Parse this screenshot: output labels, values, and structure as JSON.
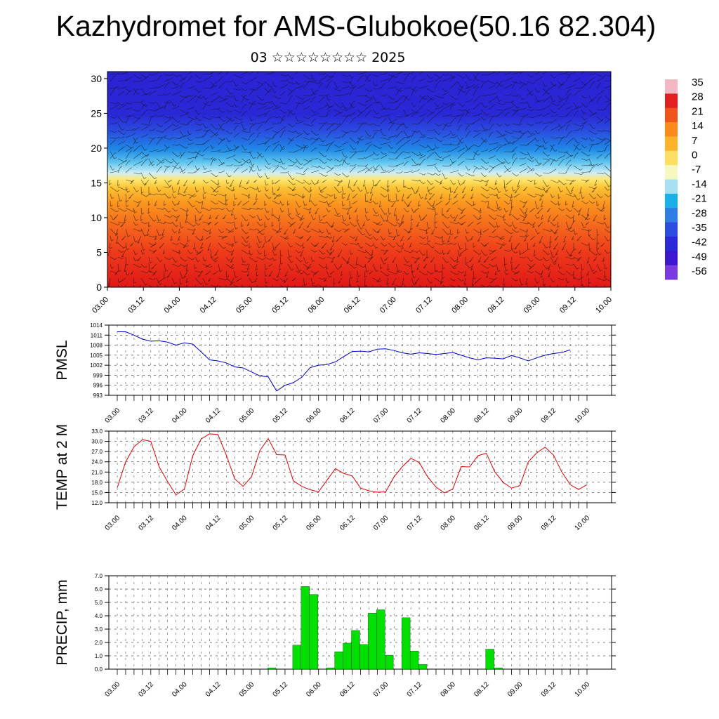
{
  "header": {
    "title": "Kazhydromet for AMS-Glubokoe(50.16 82.304)",
    "subtitle": "03 ☆☆☆☆☆☆☆☆ 2025"
  },
  "colorbar": {
    "labels": [
      "35",
      "28",
      "21",
      "14",
      "7",
      "0",
      "-7",
      "-14",
      "-21",
      "-28",
      "-35",
      "-42",
      "-49",
      "-56"
    ],
    "colors": [
      "#f4b8c4",
      "#e22020",
      "#f0541a",
      "#f98a1c",
      "#fbb42a",
      "#fde062",
      "#f6f8c0",
      "#a8e0f2",
      "#1ab0e8",
      "#2f7ee3",
      "#2d4de0",
      "#2a2ad8",
      "#3d16d2",
      "#7a3ae0"
    ]
  },
  "time_ticks": [
    "03.00",
    "03.12",
    "04.00",
    "04.12",
    "05.00",
    "05.12",
    "06.00",
    "06.12",
    "07.00",
    "07.12",
    "08.00",
    "08.12",
    "09.00",
    "09.12",
    "10.00"
  ],
  "chart_data": [
    {
      "type": "heatmap",
      "description": "Temperature vertical cross-section with wind barbs",
      "x": [
        "03.00",
        "03.12",
        "04.00",
        "04.12",
        "05.00",
        "05.12",
        "06.00",
        "06.12",
        "07.00",
        "07.12",
        "08.00",
        "08.12",
        "09.00",
        "09.12",
        "10.00"
      ],
      "ylim": [
        0,
        31
      ],
      "yticks": [
        0,
        5,
        10,
        15,
        20,
        25,
        30
      ],
      "levels": [
        0,
        5,
        10,
        15,
        20,
        25,
        30
      ],
      "temperature_by_level": [
        30,
        18,
        8,
        -14,
        -35,
        -56,
        -56
      ],
      "zlim": [
        -56,
        35
      ]
    },
    {
      "type": "line",
      "ylabel": "PMSL",
      "ylim": [
        993,
        1014
      ],
      "yticks": [
        "993",
        "996",
        "999",
        "1002",
        "1005",
        "1008",
        "1011",
        "1014"
      ],
      "series": [
        {
          "color": "#0000cc",
          "values": [
            1012,
            1012,
            1011,
            1009.8,
            1009.2,
            1009.3,
            1008.9,
            1008,
            1008.7,
            1008.3,
            1006,
            1003.6,
            1003.3,
            1002.7,
            1001.5,
            1001.2,
            1000,
            998.8,
            998.5,
            994.3,
            996,
            996.8,
            998.4,
            1001.3,
            1002,
            1002.2,
            1003,
            1004.6,
            1006.1,
            1006.2,
            1006,
            1006.8,
            1006.9,
            1006.4,
            1005.7,
            1005.3,
            1005.7,
            1005.5,
            1005.2,
            1005.5,
            1005.8,
            1005,
            1004.2,
            1003.6,
            1004.2,
            1004.1,
            1003.9,
            1004.9,
            1004.2,
            1003.3,
            1004.2,
            1005,
            1005.5,
            1005.8,
            1006.6
          ]
        }
      ],
      "x_start": "03.00",
      "x_end": "10.00",
      "step_hours": 3
    },
    {
      "type": "line",
      "ylabel": "TEMP at 2 M",
      "ylim": [
        12,
        33
      ],
      "yticks": [
        "12.0",
        "15.0",
        "18.0",
        "21.0",
        "24.0",
        "27.0",
        "30.0",
        "33.0"
      ],
      "series": [
        {
          "color": "#e00000",
          "values": [
            16.4,
            24,
            28.4,
            30.5,
            30,
            22.5,
            18.2,
            14.3,
            16,
            25.8,
            30.7,
            32.2,
            32,
            26,
            19,
            16.8,
            19.6,
            27.3,
            30.8,
            26.1,
            26,
            18.4,
            16.8,
            15.8,
            15.2,
            18.6,
            22,
            20.6,
            19.9,
            16.3,
            15.5,
            15.1,
            15.2,
            19.6,
            22.6,
            25,
            23.8,
            19.6,
            16.6,
            14.9,
            16,
            22.6,
            22.5,
            25.8,
            26.5,
            21.1,
            18,
            16.3,
            17,
            24,
            26.6,
            28.3,
            26,
            21,
            17.3,
            15.9,
            17.3
          ]
        }
      ],
      "x_start": "03.00",
      "x_end": "10.00",
      "step_hours": 3
    },
    {
      "type": "bar",
      "ylabel": "PRECIP, mm",
      "ylim": [
        0,
        7
      ],
      "yticks": [
        "0.0",
        "1.0",
        "2.0",
        "3.0",
        "4.0",
        "5.0",
        "6.0",
        "7.0"
      ],
      "bar_color": "#00e000",
      "series": [
        {
          "values": [
            0,
            0,
            0,
            0,
            0,
            0,
            0,
            0,
            0,
            0,
            0,
            0,
            0,
            0,
            0,
            0,
            0,
            0,
            0.1,
            0,
            0,
            1.8,
            6.2,
            5.6,
            0,
            0.1,
            1.3,
            1.95,
            2.9,
            1.85,
            4.2,
            4.45,
            1.05,
            0,
            3.85,
            1.35,
            0.35,
            0,
            0,
            0,
            0,
            0,
            0,
            0,
            1.5,
            0.1,
            0,
            0,
            0,
            0,
            0,
            0,
            0,
            0,
            0,
            0
          ]
        }
      ],
      "x_start": "03.00",
      "x_end": "10.00",
      "step_hours": 3
    }
  ]
}
